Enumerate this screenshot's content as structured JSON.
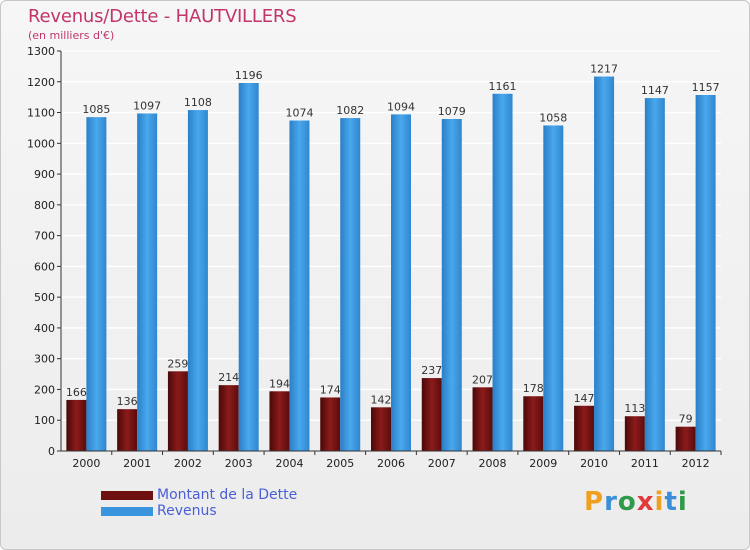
{
  "header": {
    "title": "Revenus/Dette - HAUTVILLERS",
    "subtitle": "(en milliers d'€)"
  },
  "colors": {
    "title": "#c1356a",
    "dette": "#7a1414",
    "revenus": "#3a95de",
    "legend_text": "#4a5fd6"
  },
  "chart_data": {
    "type": "bar",
    "title": "Revenus/Dette - HAUTVILLERS",
    "ylabel": "(en milliers d'€)",
    "xlabel": "",
    "categories": [
      "2000",
      "2001",
      "2002",
      "2003",
      "2004",
      "2005",
      "2006",
      "2007",
      "2008",
      "2009",
      "2010",
      "2011",
      "2012"
    ],
    "series": [
      {
        "name": "Montant de la Dette",
        "values": [
          166,
          136,
          259,
          214,
          194,
          174,
          142,
          237,
          207,
          178,
          147,
          113,
          79
        ]
      },
      {
        "name": "Revenus",
        "values": [
          1085,
          1097,
          1108,
          1196,
          1074,
          1082,
          1094,
          1079,
          1161,
          1058,
          1217,
          1147,
          1157
        ]
      }
    ],
    "ylim": [
      0,
      1300
    ],
    "yticks": [
      0,
      100,
      200,
      300,
      400,
      500,
      600,
      700,
      800,
      900,
      1000,
      1100,
      1200,
      1300
    ],
    "grid": true,
    "legend": "bottom-left"
  },
  "legend": {
    "items": [
      {
        "label": "Montant de la Dette"
      },
      {
        "label": "Revenus"
      }
    ]
  },
  "logo": {
    "letters": [
      "P",
      "r",
      "o",
      "x",
      "i",
      "t",
      "i"
    ],
    "colors": [
      "#f0a020",
      "#3a8fd8",
      "#2f9a4a",
      "#e03a3a",
      "#f0a020",
      "#3a8fd8",
      "#2f9a4a"
    ]
  }
}
